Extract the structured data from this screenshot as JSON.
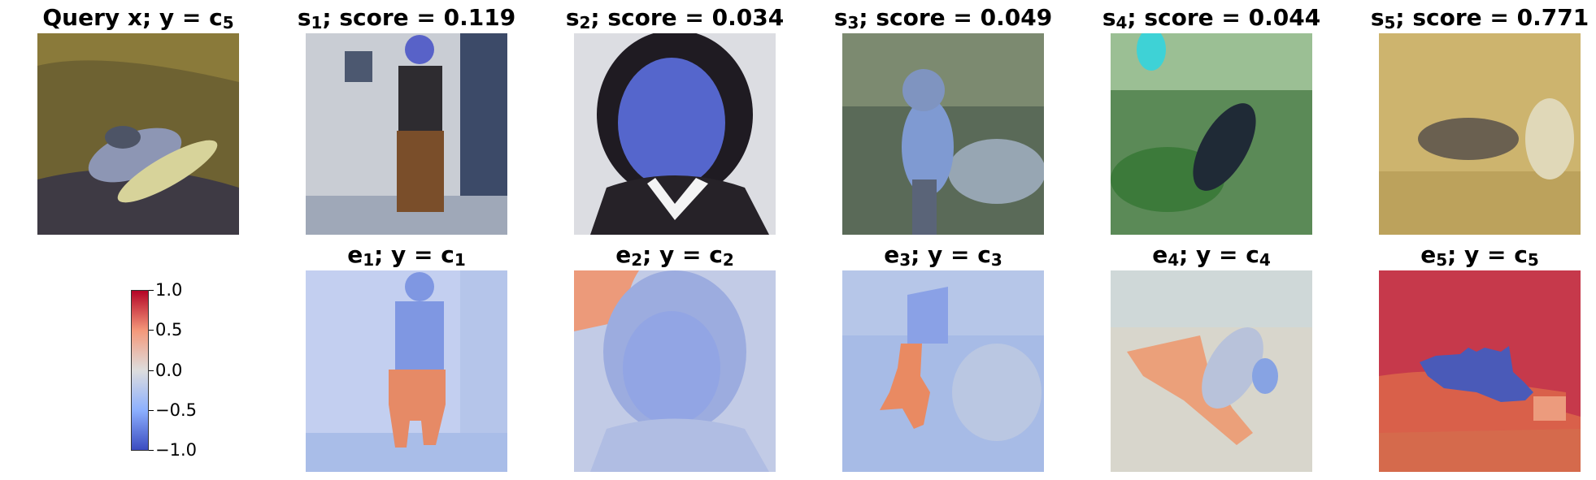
{
  "chart_data": {
    "type": "image_grid_heatmap",
    "row1": [
      {
        "id": "query",
        "title_main": "Query x; y = c",
        "title_sub": "5",
        "title_tail": ""
      },
      {
        "id": "s1",
        "title_main": "s",
        "title_sub": "1",
        "title_tail": "; score = 0.119",
        "score": 0.119
      },
      {
        "id": "s2",
        "title_main": "s",
        "title_sub": "2",
        "title_tail": "; score = 0.034",
        "score": 0.034
      },
      {
        "id": "s3",
        "title_main": "s",
        "title_sub": "3",
        "title_tail": "; score = 0.049",
        "score": 0.049
      },
      {
        "id": "s4",
        "title_main": "s",
        "title_sub": "4",
        "title_tail": "; score = 0.044",
        "score": 0.044
      },
      {
        "id": "s5",
        "title_main": "s",
        "title_sub": "5",
        "title_tail": "; score = 0.771",
        "score": 0.771
      }
    ],
    "row2": [
      {
        "id": "e1",
        "t1": "e",
        "s1": "1",
        "t2": "; y = c",
        "s2": "1"
      },
      {
        "id": "e2",
        "t1": "e",
        "s1": "2",
        "t2": "; y = c",
        "s2": "2"
      },
      {
        "id": "e3",
        "t1": "e",
        "s1": "3",
        "t2": "; y = c",
        "s2": "3"
      },
      {
        "id": "e4",
        "t1": "e",
        "s1": "4",
        "t2": "; y = c",
        "s2": "4"
      },
      {
        "id": "e5",
        "t1": "e",
        "s1": "5",
        "t2": "; y = c",
        "s2": "5"
      }
    ],
    "colorbar": {
      "range": [
        -1.0,
        1.0
      ],
      "ticks": [
        "1.0",
        "0.5",
        "0.0",
        "−0.5",
        "−1.0"
      ],
      "colormap": "coolwarm",
      "colors": {
        "low": "#3b4cc0",
        "mid": "#dddddd",
        "high": "#b40426"
      }
    }
  }
}
